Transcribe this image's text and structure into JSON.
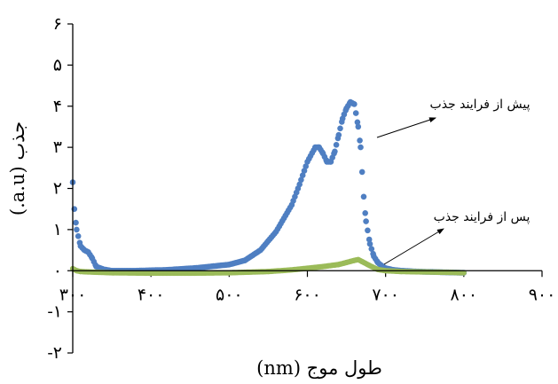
{
  "chart_data": {
    "type": "scatter",
    "xlabel": "طول موج (nm)",
    "ylabel": "جذب (a.u.)",
    "xlim": [
      300,
      900
    ],
    "ylim": [
      -2,
      6
    ],
    "x_ticks": [
      300,
      400,
      500,
      600,
      700,
      800,
      900
    ],
    "x_tick_labels": [
      "۳۰۰",
      "۴۰۰",
      "۵۰۰",
      "۶۰۰",
      "۷۰۰",
      "۸۰۰",
      "۹۰۰"
    ],
    "y_ticks": [
      -2,
      -1,
      0,
      1,
      2,
      3,
      4,
      5,
      6
    ],
    "y_tick_labels": [
      "-۲",
      "-۱",
      "۰",
      "۱",
      "۲",
      "۳",
      "۴",
      "۵",
      "۶"
    ],
    "grid": false,
    "legend": "none",
    "annotations": [
      {
        "text": "پیش از فرایند جذب",
        "series": 0
      },
      {
        "text": "پس از فرایند جذب",
        "series": 1
      }
    ],
    "series": [
      {
        "name": "پیش از فرایند جذب",
        "color": "#4F7FC2",
        "x": [
          300,
          302,
          305,
          310,
          315,
          320,
          325,
          330,
          340,
          350,
          380,
          420,
          460,
          500,
          520,
          540,
          560,
          580,
          590,
          600,
          610,
          615,
          620,
          625,
          630,
          635,
          640,
          645,
          650,
          655,
          660,
          665,
          668,
          670,
          672,
          675,
          680,
          685,
          690,
          695,
          700,
          710,
          720,
          740,
          760,
          780,
          800
        ],
        "values": [
          2.15,
          1.5,
          1.0,
          0.6,
          0.5,
          0.45,
          0.3,
          0.1,
          0.03,
          0.0,
          0.0,
          0.02,
          0.07,
          0.15,
          0.25,
          0.5,
          0.95,
          1.6,
          2.1,
          2.65,
          3.0,
          3.0,
          2.85,
          2.65,
          2.65,
          2.9,
          3.3,
          3.7,
          3.95,
          4.1,
          4.05,
          3.5,
          3.0,
          2.4,
          1.8,
          1.2,
          0.65,
          0.35,
          0.2,
          0.12,
          0.06,
          0.02,
          0.0,
          -0.02,
          -0.03,
          -0.04,
          -0.05
        ]
      },
      {
        "name": "پس از فرایند جذب",
        "color": "#9BBB59",
        "x": [
          300,
          305,
          310,
          320,
          350,
          400,
          450,
          500,
          550,
          580,
          600,
          620,
          640,
          650,
          660,
          665,
          670,
          680,
          690,
          700,
          720,
          750,
          780,
          800
        ],
        "values": [
          0.05,
          0.0,
          -0.02,
          -0.03,
          -0.05,
          -0.06,
          -0.06,
          -0.05,
          -0.02,
          0.02,
          0.06,
          0.1,
          0.15,
          0.2,
          0.25,
          0.27,
          0.22,
          0.12,
          0.03,
          0.0,
          -0.02,
          -0.03,
          -0.04,
          -0.05
        ]
      }
    ]
  }
}
